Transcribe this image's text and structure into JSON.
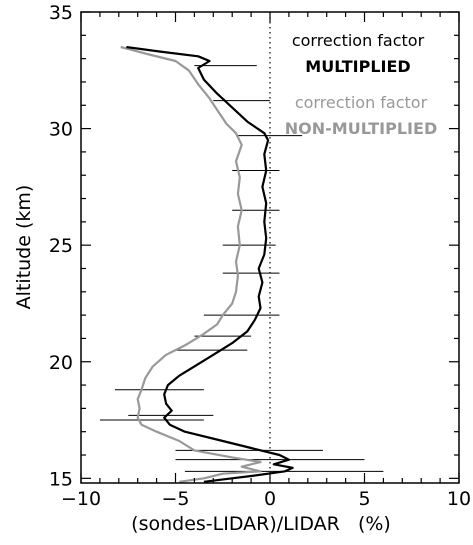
{
  "chart_data": {
    "type": "line",
    "xlabel": "(sondes-LIDAR)/LIDAR   (%)",
    "ylabel": "Altitude (km)",
    "xlim": [
      -10,
      10
    ],
    "ylim": [
      14.8,
      35
    ],
    "x_ticks": [
      -10,
      -5,
      0,
      5,
      10
    ],
    "x_tick_labels": [
      "−10",
      "−5",
      "0",
      "5",
      "10"
    ],
    "y_ticks": [
      15,
      20,
      25,
      30,
      35
    ],
    "y_tick_labels": [
      "15",
      "20",
      "25",
      "30",
      "35"
    ],
    "reference_line": {
      "x": 0,
      "style": "dotted"
    },
    "legend": [
      {
        "line1": "correction factor",
        "line2": "MULTIPLIED",
        "color": "#000000"
      },
      {
        "line1": "correction factor",
        "line2": "NON-MULTIPLIED",
        "color": "#999999"
      }
    ],
    "series": [
      {
        "color": "#999999",
        "points": [
          [
            -4.8,
            14.85
          ],
          [
            -3.5,
            15.0
          ],
          [
            -2.5,
            15.2
          ],
          [
            -0.5,
            15.3
          ],
          [
            -1.5,
            15.5
          ],
          [
            -0.5,
            15.7
          ],
          [
            -2.0,
            15.9
          ],
          [
            -4.0,
            16.2
          ],
          [
            -4.8,
            16.6
          ],
          [
            -6.0,
            17.0
          ],
          [
            -6.8,
            17.3
          ],
          [
            -7.0,
            17.6
          ],
          [
            -6.9,
            18.0
          ],
          [
            -7.0,
            18.4
          ],
          [
            -6.8,
            18.8
          ],
          [
            -6.6,
            19.3
          ],
          [
            -6.2,
            19.8
          ],
          [
            -5.5,
            20.3
          ],
          [
            -4.5,
            20.7
          ],
          [
            -3.5,
            21.2
          ],
          [
            -2.8,
            21.6
          ],
          [
            -2.5,
            22.0
          ],
          [
            -2.0,
            22.5
          ],
          [
            -1.8,
            23.0
          ],
          [
            -1.7,
            23.7
          ],
          [
            -1.8,
            24.3
          ],
          [
            -1.6,
            25.0
          ],
          [
            -1.7,
            25.8
          ],
          [
            -1.5,
            26.5
          ],
          [
            -1.7,
            27.2
          ],
          [
            -1.6,
            27.9
          ],
          [
            -1.8,
            28.6
          ],
          [
            -1.5,
            29.3
          ],
          [
            -1.8,
            29.8
          ],
          [
            -2.3,
            30.2
          ],
          [
            -2.8,
            30.8
          ],
          [
            -3.2,
            31.3
          ],
          [
            -3.8,
            31.9
          ],
          [
            -4.3,
            32.5
          ],
          [
            -5.0,
            32.9
          ],
          [
            -6.5,
            33.2
          ],
          [
            -7.9,
            33.5
          ]
        ]
      },
      {
        "color": "#000000",
        "points": [
          [
            -3.5,
            14.85
          ],
          [
            -2.0,
            15.0
          ],
          [
            -1.0,
            15.1
          ],
          [
            0.8,
            15.3
          ],
          [
            1.2,
            15.45
          ],
          [
            0.2,
            15.6
          ],
          [
            1.0,
            15.8
          ],
          [
            0.5,
            16.0
          ],
          [
            -1.0,
            16.3
          ],
          [
            -2.5,
            16.6
          ],
          [
            -4.5,
            17.0
          ],
          [
            -5.3,
            17.3
          ],
          [
            -5.6,
            17.6
          ],
          [
            -5.2,
            17.9
          ],
          [
            -5.5,
            18.2
          ],
          [
            -5.6,
            18.6
          ],
          [
            -5.4,
            19.0
          ],
          [
            -4.8,
            19.4
          ],
          [
            -4.0,
            19.8
          ],
          [
            -3.0,
            20.3
          ],
          [
            -2.0,
            20.8
          ],
          [
            -1.2,
            21.3
          ],
          [
            -0.8,
            21.8
          ],
          [
            -0.5,
            22.3
          ],
          [
            -0.6,
            22.8
          ],
          [
            -0.4,
            23.4
          ],
          [
            -0.6,
            24.0
          ],
          [
            -0.3,
            24.6
          ],
          [
            -0.2,
            25.3
          ],
          [
            -0.3,
            26.0
          ],
          [
            -0.2,
            26.8
          ],
          [
            -0.4,
            27.5
          ],
          [
            -0.2,
            28.2
          ],
          [
            -0.3,
            28.9
          ],
          [
            -0.1,
            29.5
          ],
          [
            -0.3,
            29.8
          ],
          [
            -1.2,
            30.3
          ],
          [
            -2.0,
            30.9
          ],
          [
            -2.8,
            31.5
          ],
          [
            -3.5,
            32.1
          ],
          [
            -3.8,
            32.6
          ],
          [
            -3.2,
            32.9
          ],
          [
            -3.8,
            33.1
          ],
          [
            -5.8,
            33.3
          ],
          [
            -7.6,
            33.5
          ]
        ]
      }
    ],
    "error_bars": [
      {
        "y": 15.3,
        "x_low": -4.5,
        "x_high": 6.0
      },
      {
        "y": 15.8,
        "x_low": -5.0,
        "x_high": 5.0
      },
      {
        "y": 16.2,
        "x_low": -5.0,
        "x_high": 2.8
      },
      {
        "y": 17.5,
        "x_low": -9.0,
        "x_high": -3.5
      },
      {
        "y": 17.7,
        "x_low": -7.5,
        "x_high": -3.0
      },
      {
        "y": 18.8,
        "x_low": -8.2,
        "x_high": -3.5
      },
      {
        "y": 20.5,
        "x_low": -5.0,
        "x_high": -1.2
      },
      {
        "y": 21.1,
        "x_low": -4.0,
        "x_high": -1.0
      },
      {
        "y": 22.0,
        "x_low": -3.5,
        "x_high": 0.5
      },
      {
        "y": 23.8,
        "x_low": -2.5,
        "x_high": 0.5
      },
      {
        "y": 25.0,
        "x_low": -2.5,
        "x_high": 0.3
      },
      {
        "y": 26.5,
        "x_low": -2.0,
        "x_high": 0.5
      },
      {
        "y": 28.2,
        "x_low": -2.0,
        "x_high": 0.5
      },
      {
        "y": 29.7,
        "x_low": -1.8,
        "x_high": 1.7
      },
      {
        "y": 31.2,
        "x_low": -3.0,
        "x_high": 0.0
      },
      {
        "y": 32.7,
        "x_low": -4.0,
        "x_high": -0.7
      }
    ]
  }
}
